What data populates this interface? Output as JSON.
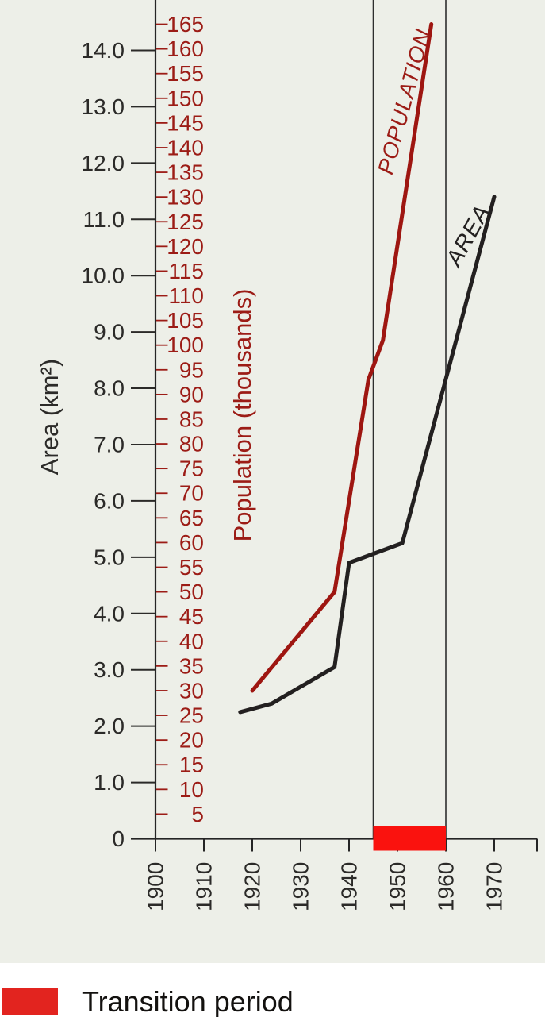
{
  "chart_data": {
    "type": "line",
    "title": "",
    "x_axis": {
      "label": "",
      "ticks": [
        1900,
        1910,
        1920,
        1930,
        1940,
        1950,
        1960,
        1970
      ],
      "range": [
        1900,
        1979
      ],
      "tick_rotation_deg": -90,
      "color": "#2b2a28"
    },
    "area_axis": {
      "label": "Area (km²)",
      "ticks": [
        0,
        1,
        2,
        3,
        4,
        5,
        6,
        7,
        8,
        9,
        10,
        11,
        12,
        13,
        14
      ],
      "tick_label_format": "one-decimal",
      "range": [
        0,
        14.9
      ],
      "side": "outer-left",
      "color": "#2b2a28"
    },
    "population_axis": {
      "label": "Population (thousands)",
      "ticks": [
        5,
        10,
        15,
        20,
        25,
        30,
        35,
        40,
        45,
        50,
        55,
        60,
        65,
        70,
        75,
        80,
        85,
        90,
        95,
        100,
        105,
        110,
        115,
        120,
        125,
        130,
        135,
        140,
        145,
        150,
        155,
        160,
        165
      ],
      "range": [
        0,
        170
      ],
      "side": "inner-left",
      "color": "#9c1c16"
    },
    "series": [
      {
        "name": "POPULATION",
        "yaxis": "population",
        "color": "#9e1611",
        "points": [
          [
            1920,
            30
          ],
          [
            1937,
            50
          ],
          [
            1944,
            93
          ],
          [
            1947,
            101
          ],
          [
            1957,
            165
          ]
        ]
      },
      {
        "name": "AREA",
        "yaxis": "area",
        "color": "#232020",
        "points": [
          [
            1917.5,
            2.25
          ],
          [
            1924,
            2.4
          ],
          [
            1937,
            3.05
          ],
          [
            1940,
            4.9
          ],
          [
            1951,
            5.25
          ],
          [
            1970,
            11.4
          ]
        ]
      }
    ],
    "transition_band": {
      "from_year": 1945,
      "to_year": 1960,
      "line_color": "#2e2e2e",
      "marker_color": "#fa120e"
    },
    "grid": "off",
    "legend_position": "below-chart"
  },
  "legend": {
    "swatch_color": "#e2241f",
    "label": "Transition period"
  },
  "colors": {
    "chart_background": "#edefe8",
    "page_background": "#ffffff",
    "axis": "#252525"
  }
}
